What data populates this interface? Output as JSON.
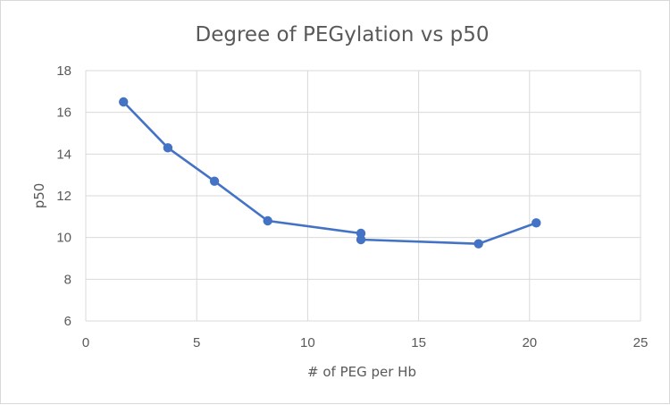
{
  "chart_data": {
    "type": "scatter",
    "title": "Degree of PEGylation vs p50",
    "xlabel": "# of PEG per Hb",
    "ylabel": "p50",
    "xlim": [
      0,
      25
    ],
    "ylim": [
      6,
      18
    ],
    "x_ticks": [
      "0",
      "5",
      "10",
      "15",
      "20",
      "25"
    ],
    "y_ticks": [
      "6",
      "8",
      "10",
      "12",
      "14",
      "16",
      "18"
    ],
    "grid": true,
    "legend": "none",
    "series": [
      {
        "color": "#4472c4",
        "mode": "lines+markers",
        "points": [
          {
            "x": 1.7,
            "y": 16.5
          },
          {
            "x": 3.7,
            "y": 14.3
          },
          {
            "x": 5.8,
            "y": 12.7
          },
          {
            "x": 8.2,
            "y": 10.8
          },
          {
            "x": 12.4,
            "y": 10.2
          },
          {
            "x": 12.4,
            "y": 9.9
          },
          {
            "x": 17.7,
            "y": 9.7
          },
          {
            "x": 20.3,
            "y": 10.7
          }
        ]
      }
    ]
  }
}
